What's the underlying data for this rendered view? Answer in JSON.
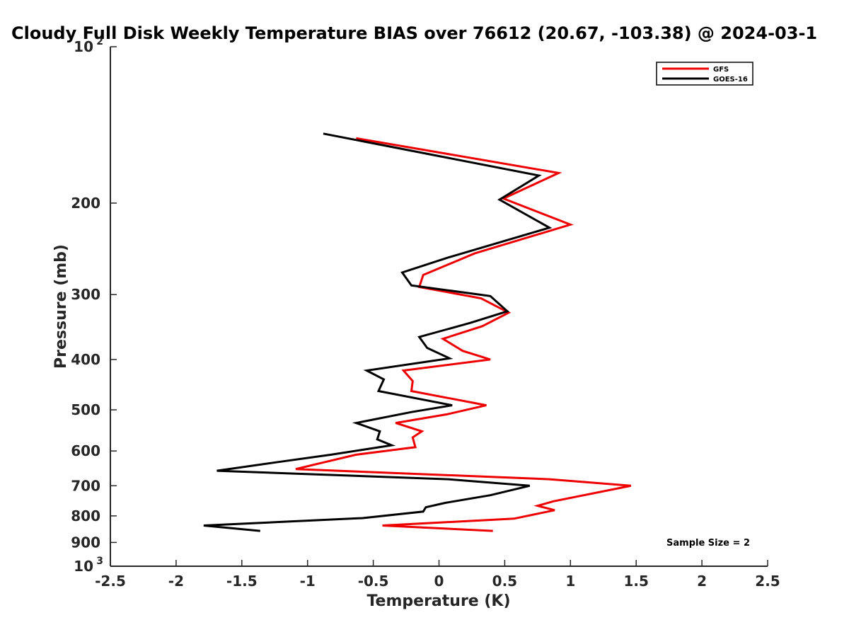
{
  "chart_data": {
    "type": "line",
    "title": "Cloudy Full Disk Weekly Temperature BIAS over 76612 (20.67, -103.38) @ 2024-03-1",
    "xlabel": "Temperature (K)",
    "ylabel": "Pressure (mb)",
    "xlim": [
      -2.5,
      2.5
    ],
    "ylim": [
      100,
      1000
    ],
    "yscale": "log",
    "y_reversed": true,
    "grid": false,
    "legend_position": "top-right",
    "x_ticks": [
      "-2.5",
      "-2",
      "-1.5",
      "-1",
      "-0.5",
      "0",
      "0.5",
      "1",
      "1.5",
      "2",
      "2.5"
    ],
    "x_tick_values": [
      -2.5,
      -2,
      -1.5,
      -1,
      -0.5,
      0,
      0.5,
      1,
      1.5,
      2,
      2.5
    ],
    "y_ticks": [
      {
        "value": 100,
        "base": "10",
        "exp": "2"
      },
      {
        "value": 200,
        "label": "200"
      },
      {
        "value": 300,
        "label": "300"
      },
      {
        "value": 400,
        "label": "400"
      },
      {
        "value": 500,
        "label": "500"
      },
      {
        "value": 600,
        "label": "600"
      },
      {
        "value": 700,
        "label": "700"
      },
      {
        "value": 800,
        "label": "800"
      },
      {
        "value": 900,
        "label": "900"
      },
      {
        "value": 1000,
        "base": "10",
        "exp": "3"
      }
    ],
    "annotation": "Sample Size = 2",
    "series": [
      {
        "name": "GFS",
        "color": "#ee0000",
        "points": [
          {
            "x": -0.63,
            "p": 150
          },
          {
            "x": 0.91,
            "p": 175
          },
          {
            "x": 0.49,
            "p": 196
          },
          {
            "x": 1.0,
            "p": 220
          },
          {
            "x": 0.27,
            "p": 250
          },
          {
            "x": -0.12,
            "p": 275
          },
          {
            "x": -0.15,
            "p": 290
          },
          {
            "x": 0.32,
            "p": 305
          },
          {
            "x": 0.53,
            "p": 325
          },
          {
            "x": 0.33,
            "p": 345
          },
          {
            "x": 0.03,
            "p": 365
          },
          {
            "x": 0.18,
            "p": 385
          },
          {
            "x": 0.39,
            "p": 400
          },
          {
            "x": -0.27,
            "p": 420
          },
          {
            "x": -0.2,
            "p": 440
          },
          {
            "x": -0.21,
            "p": 460
          },
          {
            "x": 0.36,
            "p": 490
          },
          {
            "x": 0.06,
            "p": 510
          },
          {
            "x": -0.33,
            "p": 530
          },
          {
            "x": -0.13,
            "p": 550
          },
          {
            "x": -0.2,
            "p": 565
          },
          {
            "x": -0.18,
            "p": 590
          },
          {
            "x": -0.63,
            "p": 610
          },
          {
            "x": -1.09,
            "p": 650
          },
          {
            "x": 0.84,
            "p": 680
          },
          {
            "x": 1.46,
            "p": 700
          },
          {
            "x": 0.87,
            "p": 750
          },
          {
            "x": 0.75,
            "p": 765
          },
          {
            "x": 0.88,
            "p": 780
          },
          {
            "x": 0.57,
            "p": 810
          },
          {
            "x": -0.43,
            "p": 835
          },
          {
            "x": 0.41,
            "p": 855
          }
        ]
      },
      {
        "name": "GOES-16",
        "color": "#000000",
        "points": [
          {
            "x": -0.88,
            "p": 147
          },
          {
            "x": 0.76,
            "p": 177
          },
          {
            "x": 0.46,
            "p": 197
          },
          {
            "x": 0.84,
            "p": 223
          },
          {
            "x": 0.06,
            "p": 255
          },
          {
            "x": -0.28,
            "p": 272
          },
          {
            "x": -0.21,
            "p": 288
          },
          {
            "x": 0.39,
            "p": 302
          },
          {
            "x": 0.52,
            "p": 323
          },
          {
            "x": 0.24,
            "p": 340
          },
          {
            "x": -0.15,
            "p": 362
          },
          {
            "x": -0.09,
            "p": 380
          },
          {
            "x": 0.08,
            "p": 398
          },
          {
            "x": -0.55,
            "p": 420
          },
          {
            "x": -0.42,
            "p": 437
          },
          {
            "x": -0.46,
            "p": 460
          },
          {
            "x": 0.1,
            "p": 490
          },
          {
            "x": -0.21,
            "p": 505
          },
          {
            "x": -0.63,
            "p": 530
          },
          {
            "x": -0.45,
            "p": 550
          },
          {
            "x": -0.47,
            "p": 570
          },
          {
            "x": -0.36,
            "p": 585
          },
          {
            "x": -0.82,
            "p": 610
          },
          {
            "x": -1.22,
            "p": 630
          },
          {
            "x": -1.69,
            "p": 655
          },
          {
            "x": 0.07,
            "p": 680
          },
          {
            "x": 0.69,
            "p": 700
          },
          {
            "x": 0.39,
            "p": 730
          },
          {
            "x": 0.05,
            "p": 755
          },
          {
            "x": -0.1,
            "p": 770
          },
          {
            "x": -0.12,
            "p": 785
          },
          {
            "x": -0.58,
            "p": 808
          },
          {
            "x": -1.79,
            "p": 835
          },
          {
            "x": -1.36,
            "p": 855
          }
        ]
      }
    ]
  }
}
